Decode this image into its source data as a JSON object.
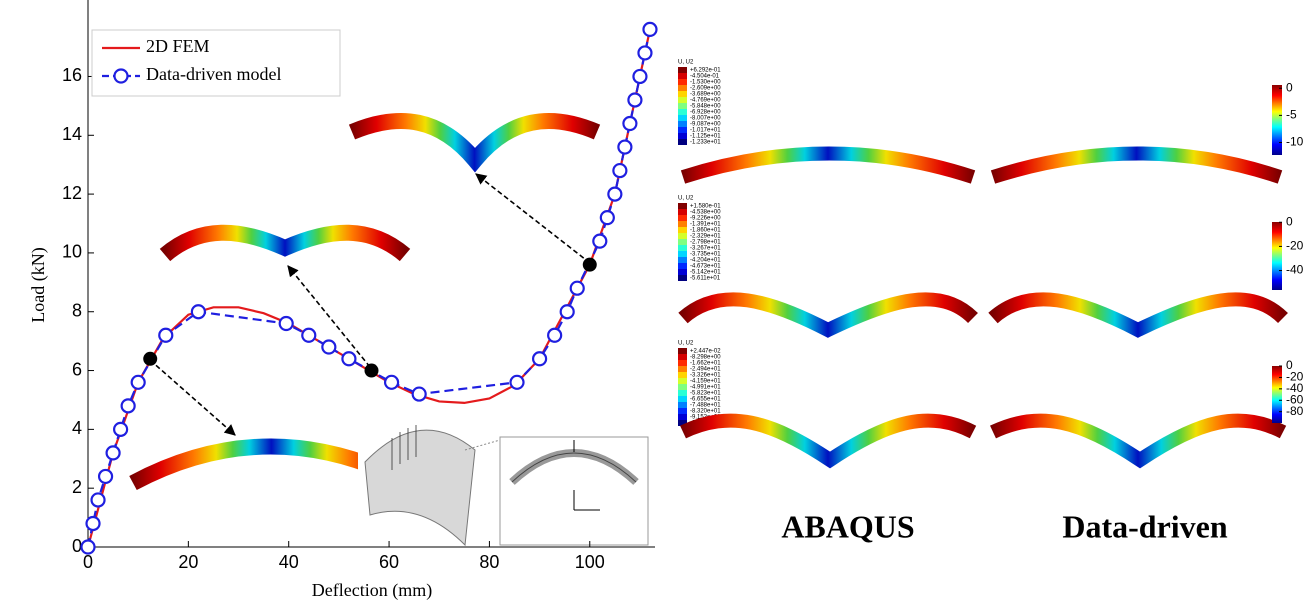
{
  "chart_data": {
    "type": "line",
    "xlabel": "Deflection (mm)",
    "ylabel": "Load (kN)",
    "xlim": [
      0,
      113
    ],
    "ylim": [
      0,
      18.6
    ],
    "xticks": [
      0,
      20,
      40,
      60,
      80,
      100
    ],
    "yticks": [
      0,
      2,
      4,
      6,
      8,
      10,
      12,
      14,
      16
    ],
    "grid": false,
    "legend": "upper left",
    "series": [
      {
        "name": "2D FEM",
        "color": "#e41a1c",
        "line_style": "solid",
        "marker": "none",
        "x": [
          0,
          5,
          10,
          15,
          20,
          25,
          30,
          35,
          40,
          45,
          50,
          55,
          60,
          65,
          70,
          75,
          80,
          85,
          90,
          95,
          100,
          105,
          110,
          112
        ],
        "values": [
          0,
          3.2,
          5.6,
          7.1,
          7.9,
          8.15,
          8.15,
          7.95,
          7.6,
          7.1,
          6.6,
          6.1,
          5.6,
          5.2,
          4.95,
          4.9,
          5.05,
          5.5,
          6.4,
          8.0,
          9.6,
          12.0,
          16.0,
          17.6
        ]
      },
      {
        "name": "Data-driven model",
        "color": "#1f1fe0",
        "line_style": "dashed",
        "marker": "circle",
        "x": [
          0,
          1,
          2,
          3.5,
          5,
          6.5,
          8,
          10,
          15.5,
          22,
          39.5,
          44,
          48,
          52,
          60.5,
          66,
          85.5,
          90,
          93,
          95.5,
          97.5,
          102,
          103.5,
          105,
          106,
          107,
          108,
          109,
          110,
          111,
          112
        ],
        "values": [
          0,
          0.8,
          1.6,
          2.4,
          3.2,
          4.0,
          4.8,
          5.6,
          7.2,
          8.0,
          7.6,
          7.2,
          6.8,
          6.4,
          5.6,
          5.2,
          5.6,
          6.4,
          7.2,
          8.0,
          8.8,
          10.4,
          11.2,
          12.0,
          12.8,
          13.6,
          14.4,
          15.2,
          16.0,
          16.8,
          17.6
        ]
      }
    ],
    "highlight_points": {
      "color": "#000000",
      "x": [
        12.4,
        56.5,
        100
      ],
      "values": [
        6.4,
        6.0,
        9.6
      ]
    }
  },
  "contours": {
    "column_labels": [
      "ABAQUS",
      "Data-driven"
    ],
    "rows": [
      {
        "abaqus_title": "U, U2",
        "abaqus_legend": [
          "+6.292e-01",
          "-4.504e-01",
          "-1.530e+00",
          "-2.609e+00",
          "-3.689e+00",
          "-4.769e+00",
          "-5.848e+00",
          "-6.928e+00",
          "-8.007e+00",
          "-9.087e+00",
          "-1.017e+01",
          "-1.125e+01",
          "-1.233e+01"
        ],
        "colorbar_lim": [
          -12.3,
          0.6
        ],
        "colorbar_ticks": [
          0,
          -5,
          -10
        ]
      },
      {
        "abaqus_title": "U, U2",
        "abaqus_legend": [
          "+1.580e-01",
          "-4.538e+00",
          "-9.226e+00",
          "-1.391e+01",
          "-1.860e+01",
          "-2.329e+01",
          "-2.798e+01",
          "-3.267e+01",
          "-3.735e+01",
          "-4.204e+01",
          "-4.673e+01",
          "-5.142e+01",
          "-5.611e+01"
        ],
        "colorbar_lim": [
          -56.1,
          0.2
        ],
        "colorbar_ticks": [
          0,
          -20,
          -40
        ]
      },
      {
        "abaqus_title": "U, U2",
        "abaqus_legend": [
          "+2.447e-02",
          "-8.298e+00",
          "-1.662e+01",
          "-2.494e+01",
          "-3.326e+01",
          "-4.159e+01",
          "-4.991e+01",
          "-5.823e+01",
          "-6.655e+01",
          "-7.488e+01",
          "-8.320e+01",
          "-9.152e+01",
          "-9.984e+01"
        ],
        "colorbar_lim": [
          -99.8,
          0
        ],
        "colorbar_ticks": [
          0,
          -20,
          -40,
          -60,
          -80
        ]
      }
    ]
  }
}
